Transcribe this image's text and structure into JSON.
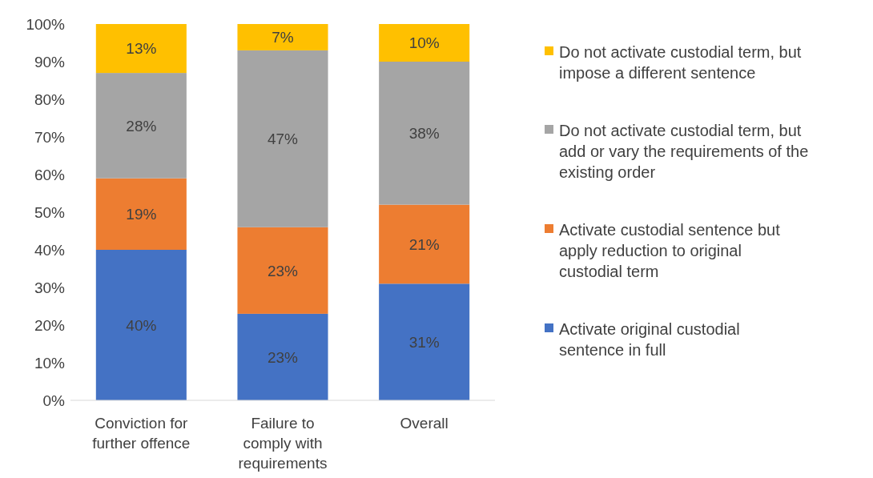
{
  "chart_data": {
    "type": "bar",
    "stacked": true,
    "categories": [
      "Conviction for further offence",
      "Failure to comply with requirements",
      "Overall"
    ],
    "series": [
      {
        "name": "Activate original custodial sentence in full",
        "color": "#4472c4",
        "values": [
          40,
          23,
          31
        ]
      },
      {
        "name": "Activate custodial sentence but apply reduction to original custodial term",
        "color": "#ed7d31",
        "values": [
          19,
          23,
          21
        ]
      },
      {
        "name": "Do not activate custodial term, but add or vary the requirements of the existing order",
        "color": "#a5a5a5",
        "values": [
          28,
          47,
          38
        ]
      },
      {
        "name": "Do not activate custodial term, but impose a different sentence",
        "color": "#ffc000",
        "values": [
          13,
          7,
          10
        ]
      }
    ],
    "ylim": [
      0,
      100
    ],
    "yticks": [
      {
        "value": 0,
        "label": "0%"
      },
      {
        "value": 10,
        "label": "10%"
      },
      {
        "value": 20,
        "label": "20%"
      },
      {
        "value": 30,
        "label": "30%"
      },
      {
        "value": 40,
        "label": "40%"
      },
      {
        "value": 50,
        "label": "50%"
      },
      {
        "value": 60,
        "label": "60%"
      },
      {
        "value": 70,
        "label": "70%"
      },
      {
        "value": 80,
        "label": "80%"
      },
      {
        "value": 90,
        "label": "90%"
      },
      {
        "value": 100,
        "label": "100%"
      }
    ],
    "value_labels": [
      [
        "40%",
        "23%",
        "31%"
      ],
      [
        "19%",
        "23%",
        "21%"
      ],
      [
        "28%",
        "47%",
        "38%"
      ],
      [
        "13%",
        "7%",
        "10%"
      ]
    ],
    "legend": "right",
    "grid": false
  }
}
